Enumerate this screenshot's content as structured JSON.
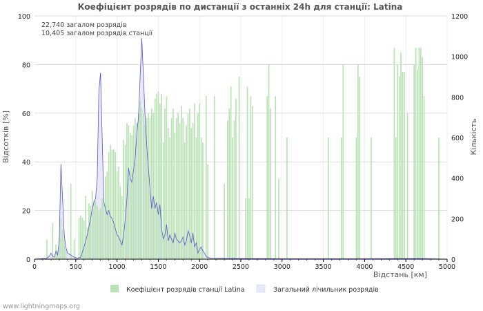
{
  "chart_data": {
    "type": "bar",
    "title": "Коефіцієнт розрядів по дистанції з останніх 24h для станції: Latina",
    "summary_lines": [
      "22,740 загалом розрядів",
      "10,405 загалом розрядів станції"
    ],
    "xlabel": "Відстань   [км]",
    "ylabel_left": "Відсотків   [%]",
    "ylabel_right": "Кількість",
    "xlim": [
      0,
      5000
    ],
    "ylim_left": [
      0,
      100
    ],
    "ylim_right": [
      0,
      1200
    ],
    "x_ticks": [
      "0",
      "500",
      "1000",
      "1500",
      "2000",
      "2500",
      "3000",
      "3500",
      "4000",
      "4500",
      "5000"
    ],
    "y_left_ticks": [
      "0",
      "20",
      "40",
      "60",
      "80",
      "100"
    ],
    "y_right_ticks": [
      "0",
      "200",
      "400",
      "600",
      "800",
      "1000",
      "1200"
    ],
    "colors": {
      "bars": "#b9e2b5",
      "count_line": "#5555cc",
      "count_fill": "#e8e8f8",
      "grid": "#cccccc"
    },
    "series": [
      {
        "name": "Коефіцієнт розрядів станції Latina",
        "axis": "left",
        "points": [
          [
            150,
            8
          ],
          [
            220,
            15
          ],
          [
            260,
            6
          ],
          [
            280,
            3
          ],
          [
            300,
            9
          ],
          [
            320,
            17
          ],
          [
            340,
            12
          ],
          [
            360,
            8
          ],
          [
            380,
            4
          ],
          [
            440,
            31
          ],
          [
            480,
            8
          ],
          [
            540,
            17
          ],
          [
            560,
            18
          ],
          [
            580,
            17
          ],
          [
            600,
            16
          ],
          [
            620,
            26
          ],
          [
            640,
            13
          ],
          [
            660,
            23
          ],
          [
            680,
            22
          ],
          [
            700,
            28
          ],
          [
            720,
            24
          ],
          [
            740,
            24
          ],
          [
            760,
            22
          ],
          [
            780,
            20
          ],
          [
            800,
            21
          ],
          [
            820,
            25
          ],
          [
            840,
            24
          ],
          [
            860,
            34
          ],
          [
            880,
            36
          ],
          [
            900,
            44
          ],
          [
            920,
            47
          ],
          [
            940,
            45
          ],
          [
            960,
            45
          ],
          [
            980,
            44
          ],
          [
            1000,
            36
          ],
          [
            1020,
            38
          ],
          [
            1040,
            30
          ],
          [
            1060,
            26
          ],
          [
            1080,
            49
          ],
          [
            1100,
            47
          ],
          [
            1120,
            56
          ],
          [
            1140,
            55
          ],
          [
            1160,
            52
          ],
          [
            1180,
            51
          ],
          [
            1200,
            55
          ],
          [
            1220,
            58
          ],
          [
            1240,
            56
          ],
          [
            1260,
            60
          ],
          [
            1280,
            65
          ],
          [
            1300,
            62
          ],
          [
            1320,
            60
          ],
          [
            1340,
            55
          ],
          [
            1360,
            58
          ],
          [
            1380,
            60
          ],
          [
            1400,
            58
          ],
          [
            1420,
            62
          ],
          [
            1440,
            60
          ],
          [
            1460,
            66
          ],
          [
            1480,
            68
          ],
          [
            1500,
            69
          ],
          [
            1520,
            64
          ],
          [
            1540,
            68
          ],
          [
            1560,
            48
          ],
          [
            1580,
            62
          ],
          [
            1600,
            67
          ],
          [
            1620,
            54
          ],
          [
            1640,
            50
          ],
          [
            1660,
            58
          ],
          [
            1680,
            62
          ],
          [
            1700,
            52
          ],
          [
            1720,
            58
          ],
          [
            1740,
            60
          ],
          [
            1760,
            56
          ],
          [
            1780,
            63
          ],
          [
            1800,
            58
          ],
          [
            1820,
            48
          ],
          [
            1840,
            55
          ],
          [
            1860,
            60
          ],
          [
            1880,
            62
          ],
          [
            1900,
            54
          ],
          [
            1920,
            56
          ],
          [
            1940,
            64
          ],
          [
            1960,
            50
          ],
          [
            1980,
            60
          ],
          [
            2000,
            64
          ],
          [
            2020,
            50
          ],
          [
            2040,
            48
          ],
          [
            2080,
            67
          ],
          [
            2100,
            39
          ],
          [
            2180,
            67
          ],
          [
            2300,
            31
          ],
          [
            2340,
            57
          ],
          [
            2360,
            62
          ],
          [
            2380,
            71
          ],
          [
            2400,
            50
          ],
          [
            2420,
            57
          ],
          [
            2440,
            66
          ],
          [
            2480,
            75
          ],
          [
            2560,
            25
          ],
          [
            2580,
            71
          ],
          [
            2600,
            25
          ],
          [
            2620,
            67
          ],
          [
            2640,
            63
          ],
          [
            2820,
            67
          ],
          [
            2840,
            80
          ],
          [
            2860,
            62
          ],
          [
            2920,
            67
          ],
          [
            2960,
            33
          ],
          [
            3060,
            50
          ],
          [
            3560,
            50
          ],
          [
            3720,
            50
          ],
          [
            3740,
            80
          ],
          [
            3900,
            50
          ],
          [
            3920,
            80
          ],
          [
            3940,
            75
          ],
          [
            4080,
            50
          ],
          [
            4360,
            87
          ],
          [
            4380,
            50
          ],
          [
            4400,
            80
          ],
          [
            4420,
            75
          ],
          [
            4440,
            85
          ],
          [
            4460,
            77
          ],
          [
            4480,
            77
          ],
          [
            4520,
            60
          ],
          [
            4600,
            80
          ],
          [
            4620,
            87
          ],
          [
            4640,
            78
          ],
          [
            4660,
            87
          ],
          [
            4680,
            87
          ],
          [
            4700,
            83
          ],
          [
            4720,
            67
          ],
          [
            4900,
            50
          ]
        ]
      },
      {
        "name": "Загальний лічильник розрядів",
        "axis": "right",
        "points": [
          [
            0,
            0
          ],
          [
            150,
            5
          ],
          [
            180,
            15
          ],
          [
            200,
            30
          ],
          [
            220,
            15
          ],
          [
            240,
            10
          ],
          [
            260,
            40
          ],
          [
            280,
            20
          ],
          [
            300,
            90
          ],
          [
            320,
            470
          ],
          [
            340,
            300
          ],
          [
            360,
            120
          ],
          [
            380,
            60
          ],
          [
            400,
            30
          ],
          [
            440,
            20
          ],
          [
            480,
            10
          ],
          [
            520,
            5
          ],
          [
            560,
            10
          ],
          [
            600,
            60
          ],
          [
            640,
            120
          ],
          [
            680,
            200
          ],
          [
            700,
            250
          ],
          [
            720,
            280
          ],
          [
            740,
            300
          ],
          [
            760,
            400
          ],
          [
            780,
            830
          ],
          [
            800,
            920
          ],
          [
            820,
            600
          ],
          [
            840,
            280
          ],
          [
            860,
            250
          ],
          [
            880,
            220
          ],
          [
            900,
            240
          ],
          [
            920,
            210
          ],
          [
            940,
            200
          ],
          [
            960,
            180
          ],
          [
            980,
            150
          ],
          [
            1000,
            120
          ],
          [
            1020,
            110
          ],
          [
            1040,
            90
          ],
          [
            1060,
            70
          ],
          [
            1080,
            120
          ],
          [
            1100,
            200
          ],
          [
            1120,
            300
          ],
          [
            1140,
            450
          ],
          [
            1160,
            400
          ],
          [
            1180,
            380
          ],
          [
            1200,
            440
          ],
          [
            1220,
            500
          ],
          [
            1240,
            620
          ],
          [
            1260,
            700
          ],
          [
            1280,
            900
          ],
          [
            1300,
            1090
          ],
          [
            1320,
            900
          ],
          [
            1340,
            700
          ],
          [
            1360,
            560
          ],
          [
            1380,
            450
          ],
          [
            1400,
            350
          ],
          [
            1420,
            250
          ],
          [
            1440,
            310
          ],
          [
            1460,
            250
          ],
          [
            1480,
            280
          ],
          [
            1500,
            220
          ],
          [
            1520,
            270
          ],
          [
            1540,
            150
          ],
          [
            1560,
            100
          ],
          [
            1580,
            120
          ],
          [
            1600,
            170
          ],
          [
            1620,
            90
          ],
          [
            1640,
            120
          ],
          [
            1660,
            100
          ],
          [
            1680,
            80
          ],
          [
            1700,
            130
          ],
          [
            1720,
            100
          ],
          [
            1740,
            90
          ],
          [
            1760,
            80
          ],
          [
            1780,
            90
          ],
          [
            1800,
            110
          ],
          [
            1820,
            70
          ],
          [
            1840,
            90
          ],
          [
            1860,
            140
          ],
          [
            1880,
            120
          ],
          [
            1900,
            80
          ],
          [
            1920,
            130
          ],
          [
            1940,
            60
          ],
          [
            1960,
            80
          ],
          [
            1980,
            30
          ],
          [
            2000,
            50
          ],
          [
            2020,
            60
          ],
          [
            2040,
            40
          ],
          [
            2060,
            30
          ],
          [
            2080,
            15
          ],
          [
            2100,
            8
          ],
          [
            2150,
            5
          ],
          [
            2300,
            4
          ],
          [
            2500,
            3
          ],
          [
            2800,
            3
          ],
          [
            3000,
            2
          ],
          [
            3500,
            2
          ],
          [
            4000,
            2
          ],
          [
            4400,
            3
          ],
          [
            4700,
            3
          ],
          [
            5000,
            0
          ]
        ]
      }
    ],
    "legend": [
      "Коефіцієнт розрядів станції Latina",
      "Загальний лічильник розрядів"
    ],
    "credit": "www.lightningmaps.org"
  }
}
